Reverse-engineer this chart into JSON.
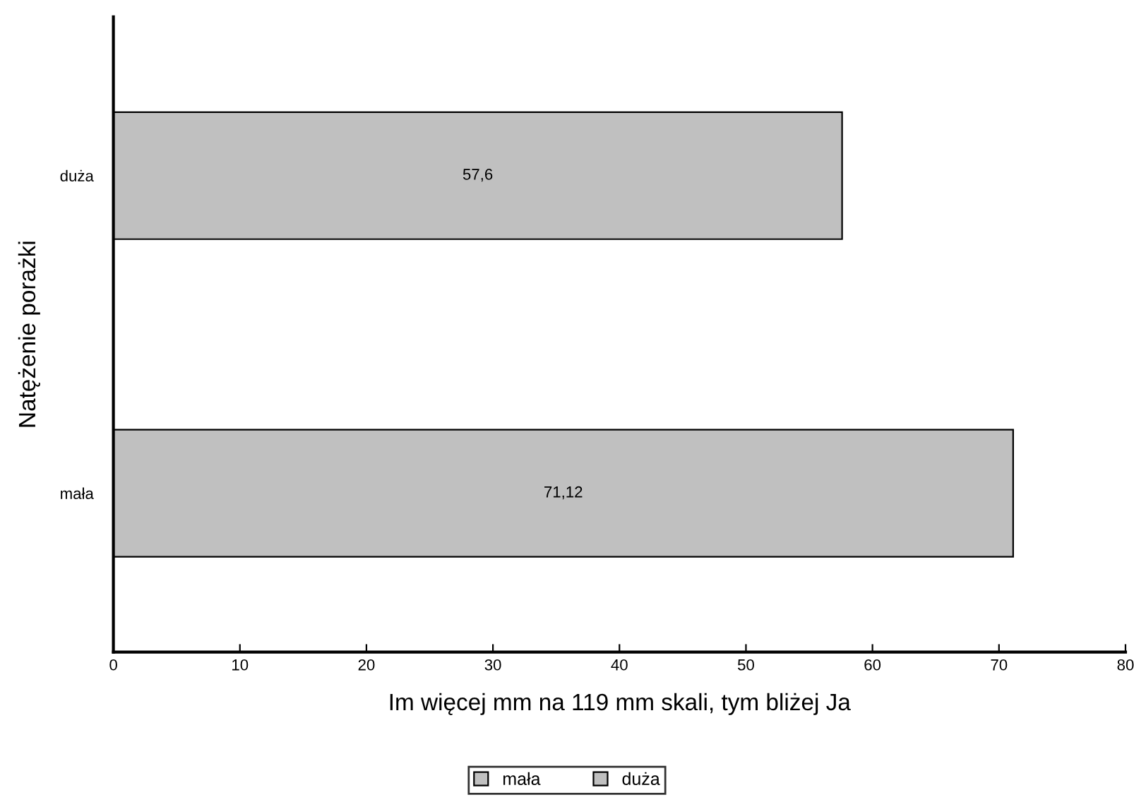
{
  "chart_data": {
    "type": "bar",
    "orientation": "horizontal",
    "xlabel": "Im więcej mm na 119 mm skali, tym bliżej Ja",
    "ylabel": "Natężenie porażki",
    "categories": [
      "duża",
      "mała"
    ],
    "series": [
      {
        "name": "mała",
        "color": "#c0c0c0",
        "values": [
          null,
          71.12
        ],
        "value_labels": [
          null,
          "71,12"
        ]
      },
      {
        "name": "duża",
        "color": "#c0c0c0",
        "values": [
          57.6,
          null
        ],
        "value_labels": [
          "57,6",
          null
        ]
      }
    ],
    "xlim": [
      0,
      80
    ],
    "xticks": [
      0,
      10,
      20,
      30,
      40,
      50,
      60,
      70,
      80
    ],
    "grid": false,
    "legend": "bottom"
  }
}
